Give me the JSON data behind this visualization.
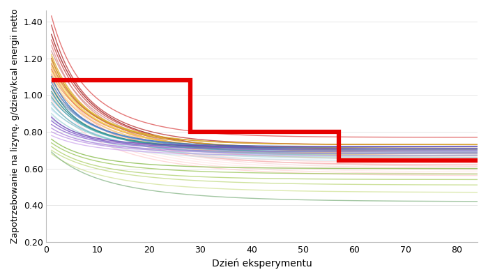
{
  "title": "",
  "xlabel": "Dzień eksperymentu",
  "ylabel": "Zapotrzebowanie na lizynę, g/dzień/kcal energii netto",
  "xlim": [
    0,
    84
  ],
  "ylim": [
    0.2,
    1.46
  ],
  "yticks": [
    0.2,
    0.4,
    0.6,
    0.8,
    1.0,
    1.2,
    1.4
  ],
  "xticks": [
    0,
    10,
    20,
    30,
    40,
    50,
    60,
    70,
    80
  ],
  "red_step": {
    "x": [
      1,
      28,
      28,
      57,
      57,
      84
    ],
    "y": [
      1.08,
      1.08,
      0.8,
      0.8,
      0.645,
      0.645
    ],
    "color": "#e60000",
    "linewidth": 4.5
  },
  "pig_lines": [
    {
      "start": 1.43,
      "end": 0.77,
      "color": "#e06060",
      "alpha": 0.85,
      "decay": 8
    },
    {
      "start": 1.38,
      "end": 0.73,
      "color": "#c04040",
      "alpha": 0.85,
      "decay": 8
    },
    {
      "start": 1.33,
      "end": 0.7,
      "color": "#a02020",
      "alpha": 0.85,
      "decay": 7
    },
    {
      "start": 1.3,
      "end": 0.7,
      "color": "#d05050",
      "alpha": 0.85,
      "decay": 7
    },
    {
      "start": 1.27,
      "end": 0.68,
      "color": "#e08080",
      "alpha": 0.75,
      "decay": 7
    },
    {
      "start": 1.24,
      "end": 0.67,
      "color": "#cc8888",
      "alpha": 0.75,
      "decay": 6
    },
    {
      "start": 1.21,
      "end": 0.65,
      "color": "#ffaaaa",
      "alpha": 0.7,
      "decay": 6
    },
    {
      "start": 1.18,
      "end": 0.63,
      "color": "#ffcccc",
      "alpha": 0.65,
      "decay": 6
    },
    {
      "start": 1.15,
      "end": 0.62,
      "color": "#ff9999",
      "alpha": 0.65,
      "decay": 6
    },
    {
      "start": 1.12,
      "end": 0.61,
      "color": "#f0c0c0",
      "alpha": 0.6,
      "decay": 5
    },
    {
      "start": 1.09,
      "end": 0.6,
      "color": "#f8d0d0",
      "alpha": 0.6,
      "decay": 5
    },
    {
      "start": 1.06,
      "end": 0.59,
      "color": "#ffdada",
      "alpha": 0.55,
      "decay": 5
    },
    {
      "start": 1.03,
      "end": 0.58,
      "color": "#ffe0e0",
      "alpha": 0.55,
      "decay": 5
    },
    {
      "start": 1.0,
      "end": 0.57,
      "color": "#ffc8c8",
      "alpha": 0.5,
      "decay": 5
    },
    {
      "start": 0.97,
      "end": 0.56,
      "color": "#ffb8b8",
      "alpha": 0.5,
      "decay": 5
    },
    {
      "start": 1.2,
      "end": 0.73,
      "color": "#c0601a",
      "alpha": 0.85,
      "decay": 8
    },
    {
      "start": 1.17,
      "end": 0.71,
      "color": "#d07030",
      "alpha": 0.85,
      "decay": 7
    },
    {
      "start": 1.14,
      "end": 0.7,
      "color": "#e08040",
      "alpha": 0.8,
      "decay": 7
    },
    {
      "start": 1.11,
      "end": 0.69,
      "color": "#f09050",
      "alpha": 0.75,
      "decay": 6
    },
    {
      "start": 1.08,
      "end": 0.68,
      "color": "#f8a060",
      "alpha": 0.7,
      "decay": 6
    },
    {
      "start": 1.05,
      "end": 0.67,
      "color": "#f8b070",
      "alpha": 0.65,
      "decay": 6
    },
    {
      "start": 1.02,
      "end": 0.66,
      "color": "#fcc080",
      "alpha": 0.6,
      "decay": 5
    },
    {
      "start": 0.99,
      "end": 0.65,
      "color": "#ffd090",
      "alpha": 0.55,
      "decay": 5
    },
    {
      "start": 1.22,
      "end": 0.73,
      "color": "#e0c030",
      "alpha": 0.8,
      "decay": 8
    },
    {
      "start": 1.19,
      "end": 0.71,
      "color": "#d8b828",
      "alpha": 0.75,
      "decay": 7
    },
    {
      "start": 1.16,
      "end": 0.7,
      "color": "#f0d040",
      "alpha": 0.7,
      "decay": 7
    },
    {
      "start": 1.13,
      "end": 0.68,
      "color": "#f8e060",
      "alpha": 0.65,
      "decay": 6
    },
    {
      "start": 1.1,
      "end": 0.67,
      "color": "#f8e880",
      "alpha": 0.6,
      "decay": 6
    },
    {
      "start": 1.1,
      "end": 0.72,
      "color": "#3070c0",
      "alpha": 0.85,
      "decay": 9
    },
    {
      "start": 1.07,
      "end": 0.71,
      "color": "#4080d0",
      "alpha": 0.8,
      "decay": 8
    },
    {
      "start": 1.04,
      "end": 0.7,
      "color": "#6090d8",
      "alpha": 0.75,
      "decay": 7
    },
    {
      "start": 1.01,
      "end": 0.69,
      "color": "#80a8e0",
      "alpha": 0.7,
      "decay": 7
    },
    {
      "start": 0.98,
      "end": 0.68,
      "color": "#90b8e8",
      "alpha": 0.65,
      "decay": 6
    },
    {
      "start": 0.95,
      "end": 0.67,
      "color": "#a8c8f0",
      "alpha": 0.6,
      "decay": 6
    },
    {
      "start": 0.92,
      "end": 0.66,
      "color": "#b8d4f8",
      "alpha": 0.55,
      "decay": 5
    },
    {
      "start": 0.89,
      "end": 0.65,
      "color": "#c8dcf8",
      "alpha": 0.5,
      "decay": 5
    },
    {
      "start": 0.86,
      "end": 0.64,
      "color": "#d4e4ff",
      "alpha": 0.5,
      "decay": 5
    },
    {
      "start": 1.05,
      "end": 0.71,
      "color": "#208888",
      "alpha": 0.85,
      "decay": 9
    },
    {
      "start": 1.02,
      "end": 0.7,
      "color": "#309898",
      "alpha": 0.8,
      "decay": 8
    },
    {
      "start": 0.99,
      "end": 0.69,
      "color": "#40a8a8",
      "alpha": 0.75,
      "decay": 7
    },
    {
      "start": 0.96,
      "end": 0.68,
      "color": "#60b8b8",
      "alpha": 0.7,
      "decay": 7
    },
    {
      "start": 0.93,
      "end": 0.67,
      "color": "#80c8c8",
      "alpha": 0.65,
      "decay": 6
    },
    {
      "start": 0.9,
      "end": 0.66,
      "color": "#98d0d0",
      "alpha": 0.6,
      "decay": 6
    },
    {
      "start": 0.87,
      "end": 0.65,
      "color": "#b0d8d8",
      "alpha": 0.55,
      "decay": 5
    },
    {
      "start": 0.84,
      "end": 0.64,
      "color": "#c0e0e0",
      "alpha": 0.5,
      "decay": 5
    },
    {
      "start": 0.88,
      "end": 0.72,
      "color": "#7040b8",
      "alpha": 0.85,
      "decay": 9
    },
    {
      "start": 0.86,
      "end": 0.71,
      "color": "#8050c8",
      "alpha": 0.8,
      "decay": 8
    },
    {
      "start": 0.84,
      "end": 0.7,
      "color": "#9060d0",
      "alpha": 0.75,
      "decay": 7
    },
    {
      "start": 0.82,
      "end": 0.69,
      "color": "#a070d8",
      "alpha": 0.7,
      "decay": 7
    },
    {
      "start": 0.8,
      "end": 0.68,
      "color": "#b080e0",
      "alpha": 0.65,
      "decay": 6
    },
    {
      "start": 0.78,
      "end": 0.67,
      "color": "#c090e8",
      "alpha": 0.6,
      "decay": 6
    },
    {
      "start": 0.76,
      "end": 0.6,
      "color": "#80b840",
      "alpha": 0.75,
      "decay": 7
    },
    {
      "start": 0.74,
      "end": 0.57,
      "color": "#90c048",
      "alpha": 0.7,
      "decay": 6
    },
    {
      "start": 0.72,
      "end": 0.54,
      "color": "#a0c850",
      "alpha": 0.65,
      "decay": 6
    },
    {
      "start": 0.7,
      "end": 0.51,
      "color": "#b0d060",
      "alpha": 0.6,
      "decay": 5
    },
    {
      "start": 0.68,
      "end": 0.47,
      "color": "#c0d870",
      "alpha": 0.55,
      "decay": 5
    },
    {
      "start": 0.69,
      "end": 0.42,
      "color": "#70a870",
      "alpha": 0.65,
      "decay": 5
    }
  ]
}
